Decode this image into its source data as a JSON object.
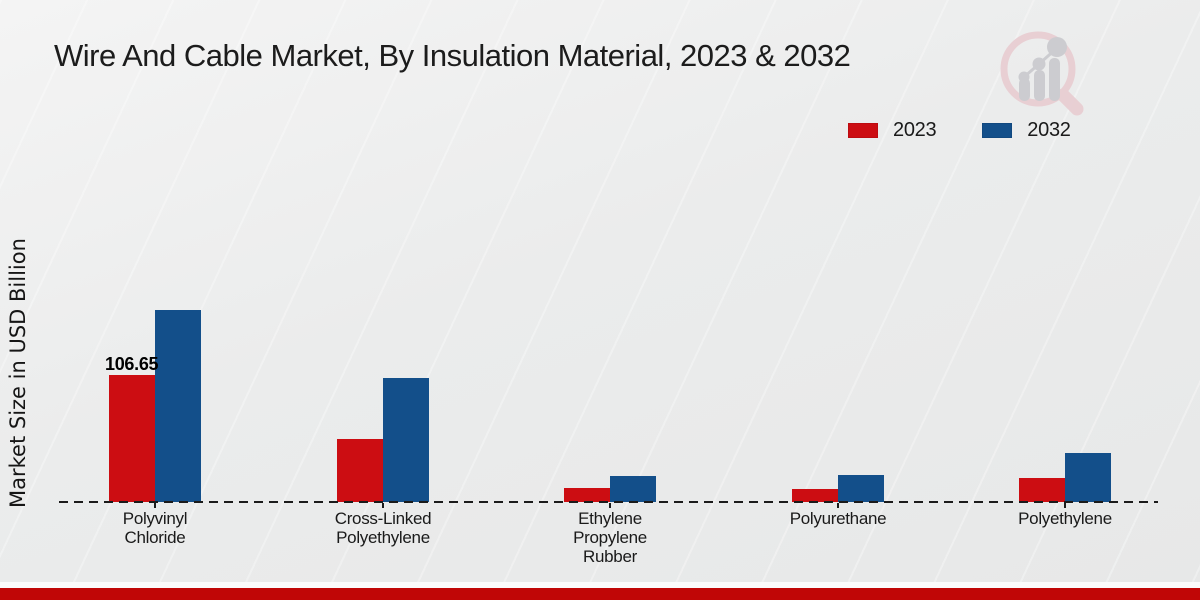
{
  "page": {
    "title": "Wire And Cable Market, By Insulation Material, 2023 & 2032"
  },
  "axes": {
    "y_label": "Market Size in USD Billion"
  },
  "legend": {
    "items": [
      {
        "label": "2023",
        "color": "#cc0d12"
      },
      {
        "label": "2032",
        "color": "#134f8a"
      }
    ]
  },
  "branding": {
    "logo_icon": "magnifier-bar-chart-watermark",
    "bottom_bar_color": "#c00606",
    "logo_ring_color": "#e8ccd1",
    "logo_bar_color": "#c9c9cd"
  },
  "chart_data": {
    "type": "bar",
    "title": "Wire And Cable Market, By Insulation Material, 2023 & 2032",
    "xlabel": "",
    "ylabel": "Market Size in USD Billion",
    "categories": [
      "Polyvinyl Chloride",
      "Cross-Linked Polyethylene",
      "Ethylene Propylene Rubber",
      "Polyurethane",
      "Polyethylene"
    ],
    "category_label_lines": [
      [
        "Polyvinyl",
        "Chloride"
      ],
      [
        "Cross-Linked",
        "Polyethylene"
      ],
      [
        "Ethylene",
        "Propylene",
        "Rubber"
      ],
      [
        "Polyurethane"
      ],
      [
        "Polyethylene"
      ]
    ],
    "series": [
      {
        "name": "2023",
        "color": "#cc0d12",
        "values": [
          106.65,
          52.9,
          11.8,
          10.9,
          20.2
        ]
      },
      {
        "name": "2032",
        "color": "#134f8a",
        "values": [
          161.2,
          104.1,
          21.8,
          22.7,
          41.2
        ]
      }
    ],
    "data_labels": [
      {
        "series": "2023",
        "category": "Polyvinyl Chloride",
        "text": "106.65"
      }
    ],
    "ylim": [
      0,
      170
    ],
    "grid": false,
    "baseline_style": "dashed",
    "legend_position": "top-right"
  }
}
